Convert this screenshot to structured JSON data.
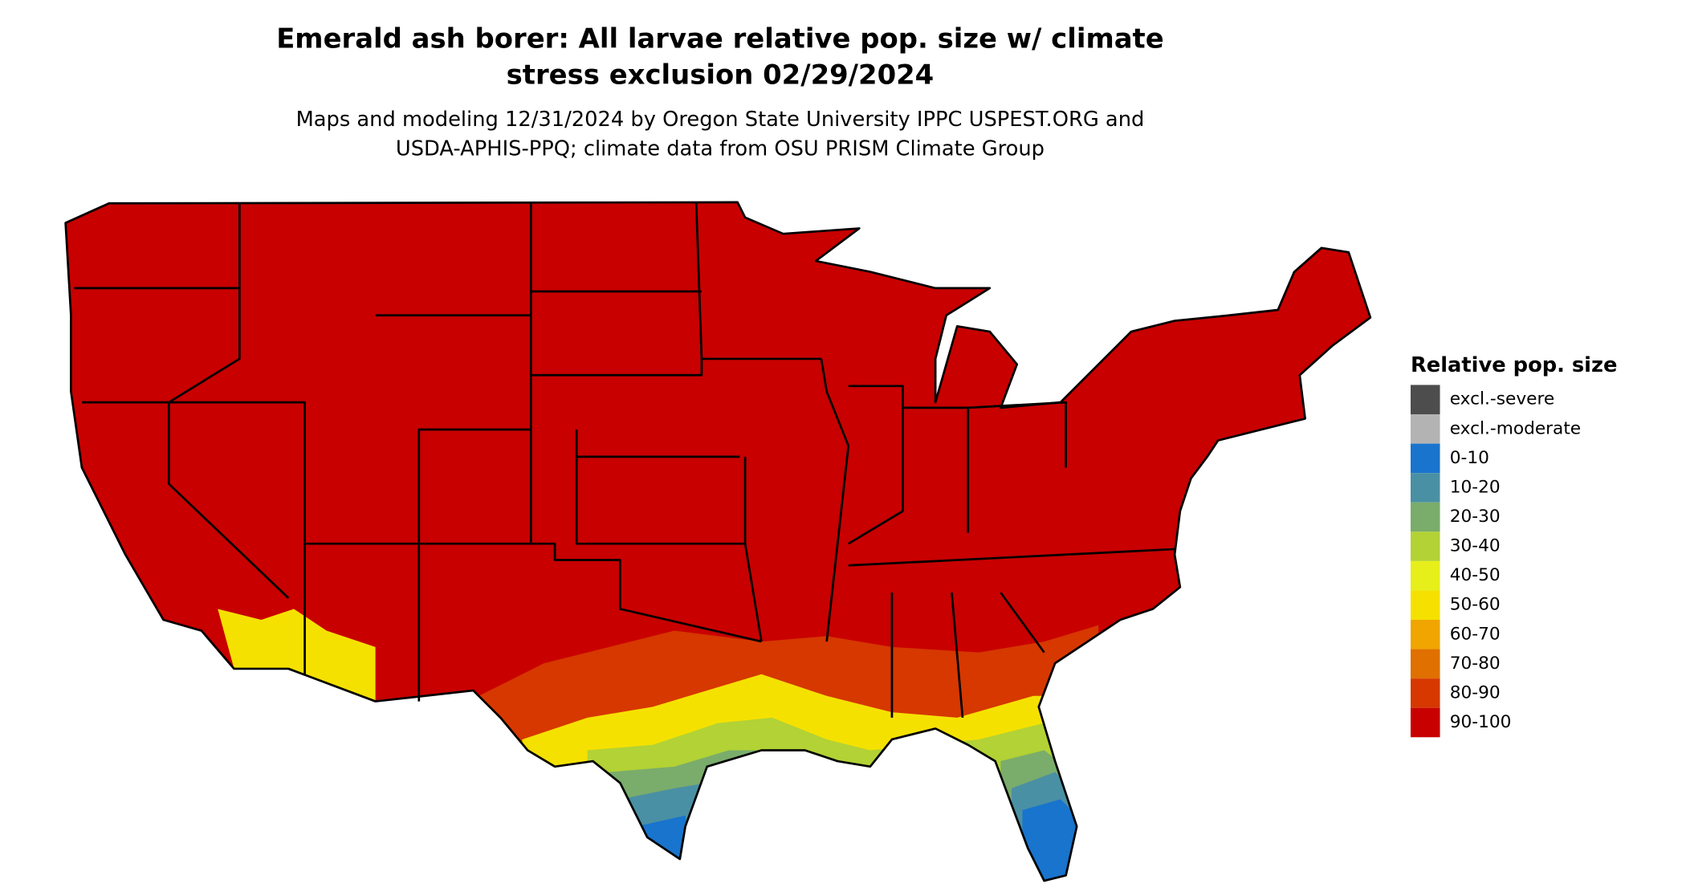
{
  "title_lines": [
    "Emerald ash borer: All larvae relative pop. size w/ climate",
    "stress exclusion 02/29/2024"
  ],
  "subtitle_lines": [
    "Maps and modeling 12/31/2024 by Oregon State University IPPC USPEST.ORG and",
    "USDA-APHIS-PPQ; climate data from OSU PRISM Climate Group"
  ],
  "legend": {
    "title": "Relative pop. size",
    "items": [
      {
        "label": "excl.-severe",
        "color": "#4d4d4d"
      },
      {
        "label": "excl.-moderate",
        "color": "#b3b3b3"
      },
      {
        "label": "0-10",
        "color": "#1874cd"
      },
      {
        "label": "10-20",
        "color": "#4a90a4"
      },
      {
        "label": "20-30",
        "color": "#7aac6c"
      },
      {
        "label": "30-40",
        "color": "#b2d235"
      },
      {
        "label": "40-50",
        "color": "#e6ef1a"
      },
      {
        "label": "50-60",
        "color": "#f5e100"
      },
      {
        "label": "60-70",
        "color": "#f0a500"
      },
      {
        "label": "70-80",
        "color": "#e07000"
      },
      {
        "label": "80-90",
        "color": "#d63800"
      },
      {
        "label": "90-100",
        "color": "#c80000"
      }
    ]
  }
}
